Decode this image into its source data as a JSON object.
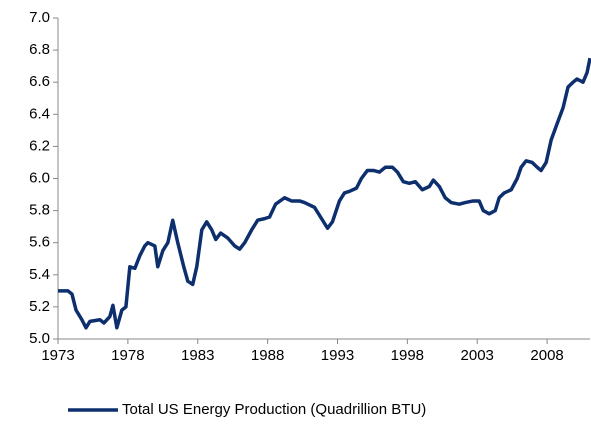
{
  "chart_data": {
    "type": "line",
    "x": [
      1973.0,
      1973.71,
      1974.0,
      1974.29,
      1974.71,
      1975.0,
      1975.29,
      1976.0,
      1976.29,
      1976.71,
      1976.93,
      1977.21,
      1977.57,
      1977.86,
      1978.14,
      1978.5,
      1978.86,
      1979.21,
      1979.43,
      1979.93,
      1980.14,
      1980.5,
      1980.86,
      1981.21,
      1981.57,
      1982.0,
      1982.29,
      1982.64,
      1982.93,
      1983.29,
      1983.64,
      1984.0,
      1984.29,
      1984.64,
      1985.14,
      1985.64,
      1986.0,
      1986.36,
      1986.86,
      1987.29,
      1987.79,
      1988.14,
      1988.57,
      1989.21,
      1989.71,
      1990.29,
      1990.64,
      1991.36,
      1991.86,
      1992.29,
      1992.64,
      1993.14,
      1993.5,
      1993.86,
      1994.36,
      1994.71,
      1995.14,
      1995.57,
      1996.0,
      1996.43,
      1996.93,
      1997.29,
      1997.71,
      1998.14,
      1998.57,
      1999.07,
      1999.57,
      1999.86,
      2000.29,
      2000.71,
      2001.14,
      2001.71,
      2002.14,
      2002.71,
      2003.14,
      2003.43,
      2003.86,
      2004.29,
      2004.57,
      2004.93,
      2005.43,
      2005.86,
      2006.14,
      2006.5,
      2006.93,
      2007.29,
      2007.57,
      2007.93,
      2008.29,
      2008.71,
      2009.14,
      2009.5,
      2009.86,
      2010.14,
      2010.57,
      2010.86,
      2011.07
    ],
    "series": [
      {
        "name": "Total US Energy Production (Quadrillion BTU)",
        "color": "#0d2f6e",
        "values": [
          5.3,
          5.3,
          5.28,
          5.18,
          5.12,
          5.07,
          5.11,
          5.12,
          5.1,
          5.14,
          5.21,
          5.07,
          5.18,
          5.2,
          5.45,
          5.44,
          5.52,
          5.58,
          5.6,
          5.58,
          5.45,
          5.55,
          5.6,
          5.74,
          5.6,
          5.45,
          5.36,
          5.34,
          5.45,
          5.68,
          5.73,
          5.68,
          5.62,
          5.66,
          5.63,
          5.58,
          5.56,
          5.6,
          5.68,
          5.74,
          5.75,
          5.76,
          5.84,
          5.88,
          5.86,
          5.86,
          5.85,
          5.82,
          5.75,
          5.69,
          5.73,
          5.86,
          5.91,
          5.92,
          5.94,
          6.0,
          6.05,
          6.05,
          6.04,
          6.07,
          6.07,
          6.04,
          5.98,
          5.97,
          5.98,
          5.93,
          5.95,
          5.99,
          5.95,
          5.88,
          5.85,
          5.84,
          5.85,
          5.86,
          5.86,
          5.8,
          5.78,
          5.8,
          5.88,
          5.91,
          5.93,
          6.0,
          6.07,
          6.11,
          6.1,
          6.07,
          6.05,
          6.1,
          6.24,
          6.34,
          6.44,
          6.57,
          6.6,
          6.62,
          6.6,
          6.66,
          6.75
        ]
      }
    ],
    "xlim": [
      1973,
      2011.07
    ],
    "xticks": [
      1973,
      1978,
      1983,
      1988,
      1993,
      1998,
      2003,
      2008
    ],
    "ylim": [
      5.0,
      7.0
    ],
    "yticks": [
      {
        "value": 5.0,
        "label": "5.0"
      },
      5.2,
      5.4,
      5.6,
      5.8,
      {
        "value": 6.0,
        "label": "6.0"
      },
      6.2,
      6.4,
      6.6,
      6.8,
      {
        "value": 7.0,
        "label": "7.0"
      }
    ],
    "grid": false,
    "legend": "bottom"
  }
}
